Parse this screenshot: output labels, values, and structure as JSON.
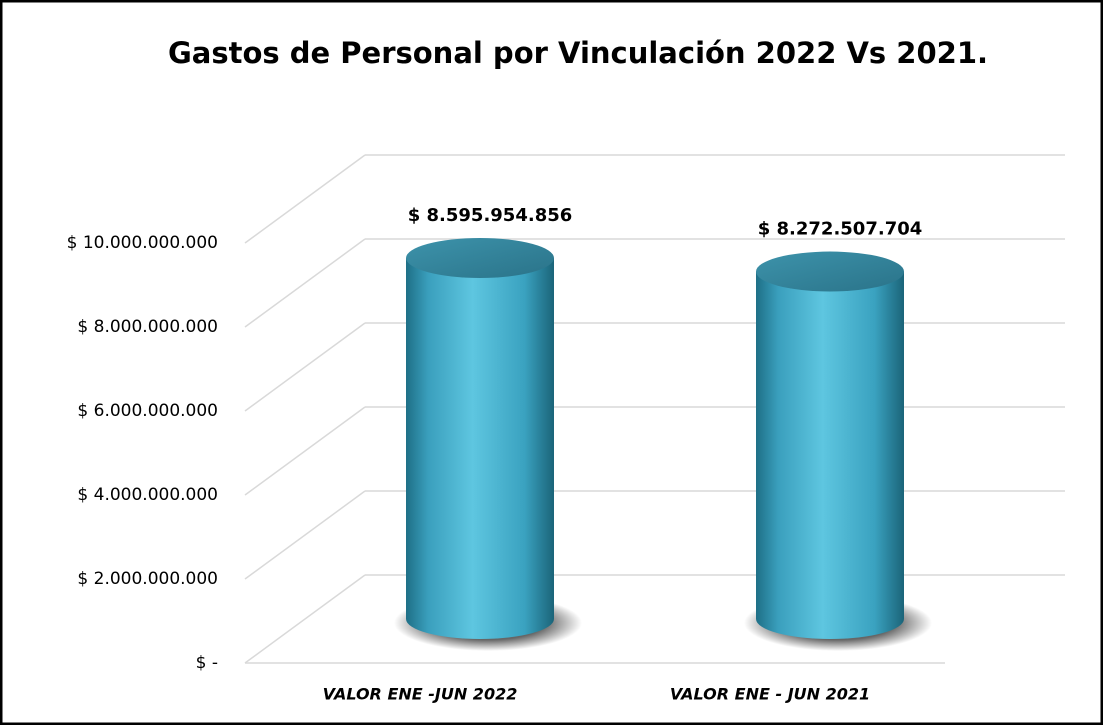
{
  "chart_data": {
    "type": "cylinder",
    "title": "Gastos de Personal por Vinculación 2022 Vs 2021.",
    "categories": [
      "VALOR ENE -JUN 2022",
      "VALOR ENE - JUN 2021"
    ],
    "values": [
      8595954856,
      8272507704
    ],
    "value_labels": [
      "$ 8.595.954.856",
      "$ 8.272.507.704"
    ],
    "color": "#45b4d3",
    "ylim": [
      0,
      10000000000
    ],
    "yticks": [
      {
        "value": 0,
        "label": "$ -"
      },
      {
        "value": 2000000000,
        "label": "$ 2.000.000.000"
      },
      {
        "value": 4000000000,
        "label": "$ 4.000.000.000"
      },
      {
        "value": 6000000000,
        "label": "$ 6.000.000.000"
      },
      {
        "value": 8000000000,
        "label": "$ 8.000.000.000"
      },
      {
        "value": 10000000000,
        "label": "$ 10.000.000.000"
      }
    ],
    "grid": true
  }
}
